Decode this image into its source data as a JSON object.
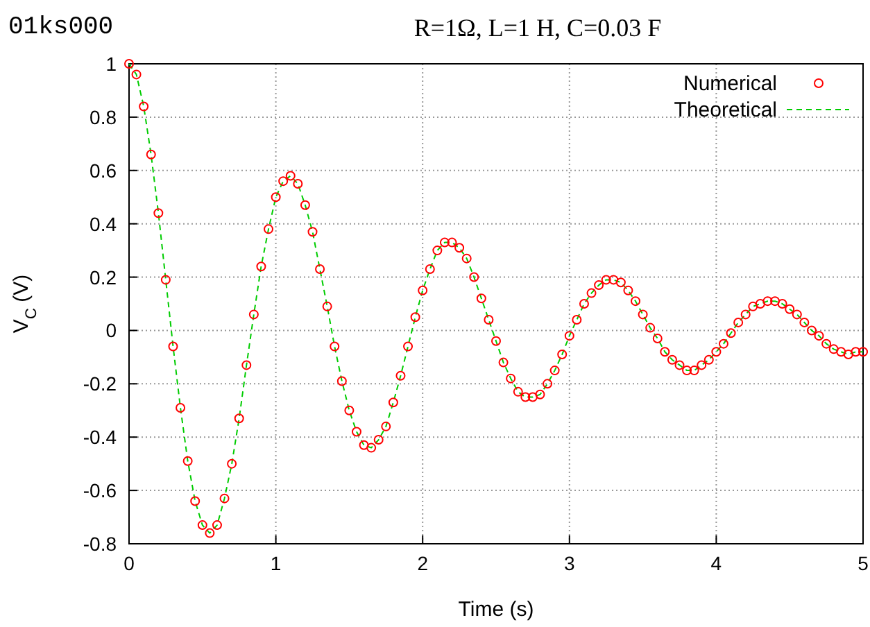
{
  "chart_data": {
    "type": "line",
    "title": "R=1Ω, L=1 H, C=0.03 F",
    "annotations": [
      "01ks000"
    ],
    "xlabel": "Time (s)",
    "ylabel": "V$_{C}$ (V)",
    "x": [
      0,
      0.05,
      0.1,
      0.15,
      0.2,
      0.25,
      0.3,
      0.35,
      0.4,
      0.45,
      0.5,
      0.55,
      0.6,
      0.65,
      0.7,
      0.75,
      0.8,
      0.85,
      0.9,
      0.95,
      1,
      1.05,
      1.1,
      1.15,
      1.2,
      1.25,
      1.3,
      1.35,
      1.4,
      1.45,
      1.5,
      1.55,
      1.6,
      1.65,
      1.7,
      1.75,
      1.8,
      1.85,
      1.9,
      1.95,
      2,
      2.05,
      2.1,
      2.15,
      2.2,
      2.25,
      2.3,
      2.35,
      2.4,
      2.45,
      2.5,
      2.55,
      2.6,
      2.65,
      2.7,
      2.75,
      2.8,
      2.85,
      2.9,
      2.95,
      3,
      3.05,
      3.1,
      3.15,
      3.2,
      3.25,
      3.3,
      3.35,
      3.4,
      3.45,
      3.5,
      3.55,
      3.6,
      3.65,
      3.7,
      3.75,
      3.8,
      3.85,
      3.9,
      3.95,
      4,
      4.05,
      4.1,
      4.15,
      4.2,
      4.25,
      4.3,
      4.35,
      4.4,
      4.45,
      4.5,
      4.55,
      4.6,
      4.65,
      4.7,
      4.75,
      4.8,
      4.85,
      4.9,
      4.95,
      5
    ],
    "series": [
      {
        "name": "Numerical",
        "type": "scatter",
        "marker": "circle",
        "color": "#ff0000",
        "values": [
          1.0,
          0.96,
          0.84,
          0.66,
          0.44,
          0.19,
          -0.06,
          -0.29,
          -0.49,
          -0.64,
          -0.73,
          -0.76,
          -0.73,
          -0.63,
          -0.5,
          -0.33,
          -0.13,
          0.06,
          0.24,
          0.38,
          0.5,
          0.56,
          0.58,
          0.55,
          0.47,
          0.37,
          0.23,
          0.09,
          -0.06,
          -0.19,
          -0.3,
          -0.38,
          -0.43,
          -0.44,
          -0.41,
          -0.36,
          -0.27,
          -0.17,
          -0.06,
          0.05,
          0.15,
          0.23,
          0.3,
          0.33,
          0.33,
          0.31,
          0.27,
          0.2,
          0.12,
          0.04,
          -0.04,
          -0.12,
          -0.18,
          -0.23,
          -0.25,
          -0.25,
          -0.24,
          -0.2,
          -0.15,
          -0.09,
          -0.02,
          0.04,
          0.1,
          0.14,
          0.17,
          0.19,
          0.19,
          0.18,
          0.15,
          0.11,
          0.06,
          0.01,
          -0.03,
          -0.08,
          -0.11,
          -0.13,
          -0.15,
          -0.15,
          -0.13,
          -0.11,
          -0.08,
          -0.05,
          -0.01,
          0.03,
          0.06,
          0.09,
          0.1,
          0.11,
          0.11,
          0.1,
          0.08,
          0.06,
          0.03,
          0.0,
          -0.02,
          -0.05,
          -0.07,
          -0.08,
          -0.09,
          -0.08,
          -0.08
        ]
      },
      {
        "name": "Theoretical",
        "type": "line",
        "line_style": "dashed",
        "color": "#00cc00",
        "values": [
          1.0,
          0.96,
          0.84,
          0.66,
          0.44,
          0.19,
          -0.06,
          -0.29,
          -0.49,
          -0.64,
          -0.73,
          -0.76,
          -0.73,
          -0.63,
          -0.5,
          -0.33,
          -0.13,
          0.06,
          0.24,
          0.38,
          0.5,
          0.56,
          0.58,
          0.55,
          0.47,
          0.37,
          0.23,
          0.09,
          -0.06,
          -0.19,
          -0.3,
          -0.38,
          -0.43,
          -0.44,
          -0.41,
          -0.36,
          -0.27,
          -0.17,
          -0.06,
          0.05,
          0.15,
          0.23,
          0.3,
          0.33,
          0.33,
          0.31,
          0.27,
          0.2,
          0.12,
          0.04,
          -0.04,
          -0.12,
          -0.18,
          -0.23,
          -0.25,
          -0.25,
          -0.24,
          -0.2,
          -0.15,
          -0.09,
          -0.02,
          0.04,
          0.1,
          0.14,
          0.17,
          0.19,
          0.19,
          0.18,
          0.15,
          0.11,
          0.06,
          0.01,
          -0.03,
          -0.08,
          -0.11,
          -0.13,
          -0.15,
          -0.15,
          -0.13,
          -0.11,
          -0.08,
          -0.05,
          -0.01,
          0.03,
          0.06,
          0.09,
          0.1,
          0.11,
          0.11,
          0.1,
          0.08,
          0.06,
          0.03,
          0.0,
          -0.02,
          -0.05,
          -0.07,
          -0.08,
          -0.09,
          -0.08,
          -0.08
        ]
      }
    ],
    "xlim": [
      0,
      5
    ],
    "xticks": [
      0,
      1,
      2,
      3,
      4,
      5
    ],
    "ylim": [
      -0.8,
      1
    ],
    "yticks": [
      -0.8,
      -0.6,
      -0.4,
      -0.2,
      0,
      0.2,
      0.4,
      0.6,
      0.8,
      1
    ],
    "grid": true,
    "legend": "top right"
  }
}
